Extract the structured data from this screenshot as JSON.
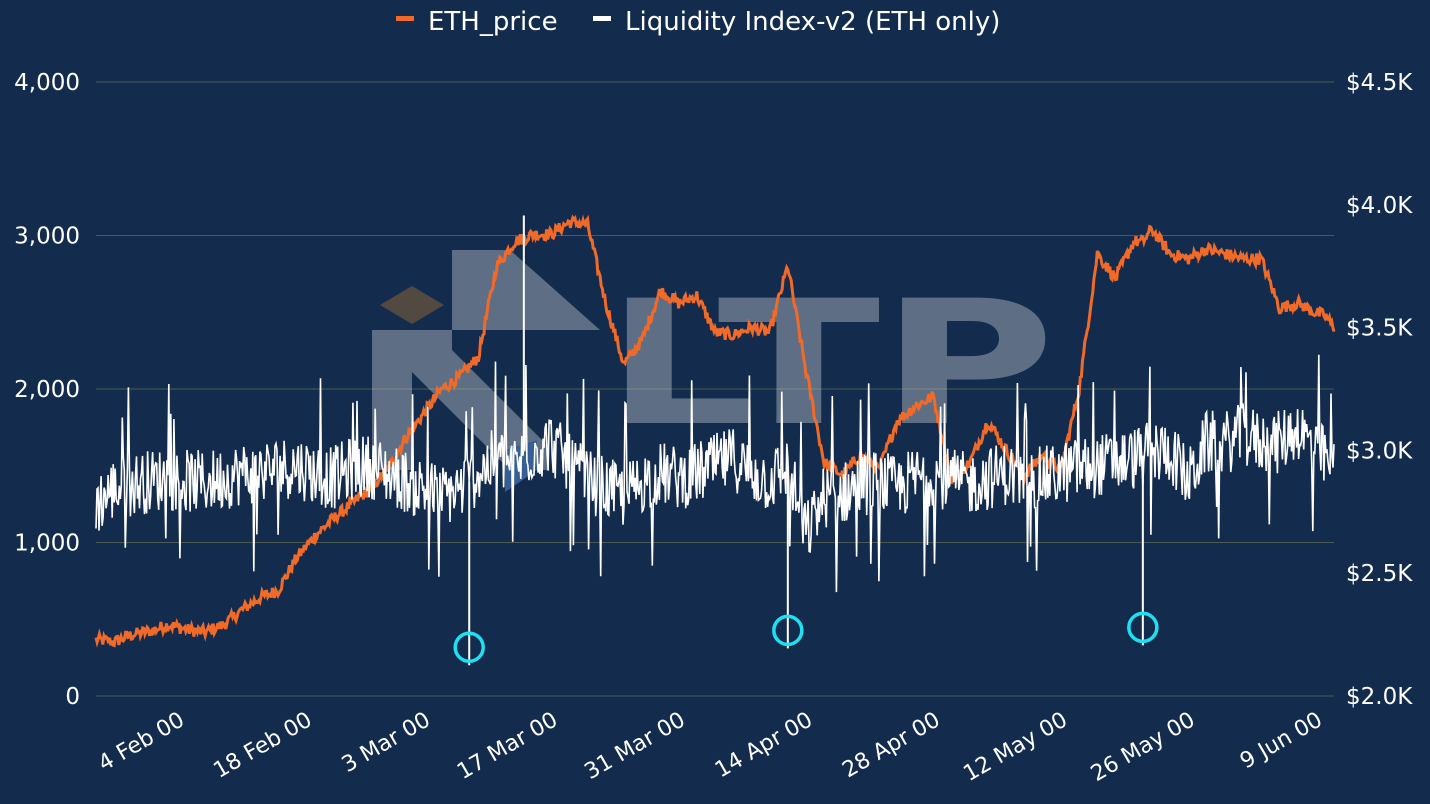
{
  "chart_data": {
    "type": "line",
    "background": "#132c4e",
    "legend": {
      "position": "top-center",
      "items": [
        {
          "label": "ETH_price",
          "color": "#f26a28"
        },
        {
          "label": "Liquidity Index-v2 (ETH only)",
          "color": "#ffffff"
        }
      ]
    },
    "y_left": {
      "ticks": [
        0,
        1000,
        2000,
        3000,
        4000
      ],
      "tick_labels": [
        "0",
        "1,000",
        "2,000",
        "3,000",
        "4,000"
      ],
      "range": [
        0,
        4000
      ]
    },
    "y_right": {
      "ticks": [
        2000,
        2500,
        3000,
        3500,
        4000,
        4500
      ],
      "tick_labels": [
        "$2.0K",
        "$2.5K",
        "$3.0K",
        "$3.5K",
        "$4.0K",
        "$4.5K"
      ],
      "range": [
        2000,
        4500
      ]
    },
    "x_axis": {
      "range": [
        "2021-01-26",
        "2021-06-11"
      ],
      "ticks": [
        "2021-02-04",
        "2021-02-18",
        "2021-03-03",
        "2021-03-17",
        "2021-03-31",
        "2021-04-14",
        "2021-04-28",
        "2021-05-12",
        "2021-05-26",
        "2021-06-09"
      ],
      "tick_labels": [
        "4 Feb 00",
        "18 Feb 00",
        "3 Mar 00",
        "17 Mar 00",
        "31 Mar 00",
        "14 Apr 00",
        "28 Apr 00",
        "12 May 00",
        "26 May 00",
        "9 Jun 00"
      ]
    },
    "grid": "horizontal",
    "series": [
      {
        "name": "ETH_price",
        "axis": "right",
        "color": "#f26a28",
        "x": [
          "2021-01-26",
          "2021-01-28",
          "2021-01-30",
          "2021-02-01",
          "2021-02-03",
          "2021-02-05",
          "2021-02-07",
          "2021-02-09",
          "2021-02-11",
          "2021-02-13",
          "2021-02-15",
          "2021-02-17",
          "2021-02-19",
          "2021-02-21",
          "2021-02-23",
          "2021-02-25",
          "2021-02-27",
          "2021-03-01",
          "2021-03-03",
          "2021-03-05",
          "2021-03-07",
          "2021-03-09",
          "2021-03-11",
          "2021-03-13",
          "2021-03-15",
          "2021-03-17",
          "2021-03-19",
          "2021-03-21",
          "2021-03-23",
          "2021-03-25",
          "2021-03-27",
          "2021-03-29",
          "2021-03-31",
          "2021-04-02",
          "2021-04-04",
          "2021-04-06",
          "2021-04-08",
          "2021-04-10",
          "2021-04-12",
          "2021-04-14",
          "2021-04-16",
          "2021-04-18",
          "2021-04-20",
          "2021-04-22",
          "2021-04-24",
          "2021-04-26",
          "2021-04-28",
          "2021-04-30",
          "2021-05-02",
          "2021-05-04",
          "2021-05-06",
          "2021-05-08",
          "2021-05-10",
          "2021-05-12",
          "2021-05-14",
          "2021-05-16",
          "2021-05-18",
          "2021-05-20",
          "2021-05-21",
          "2021-05-22",
          "2021-05-24",
          "2021-05-26",
          "2021-05-28",
          "2021-05-30",
          "2021-06-01",
          "2021-06-03",
          "2021-06-05",
          "2021-06-07",
          "2021-06-09",
          "2021-06-10",
          "2021-06-11"
        ],
        "values": [
          2230,
          2220,
          2250,
          2265,
          2290,
          2270,
          2260,
          2290,
          2350,
          2400,
          2430,
          2560,
          2650,
          2720,
          2780,
          2840,
          2920,
          3050,
          3150,
          3250,
          3300,
          3380,
          3750,
          3850,
          3880,
          3880,
          3930,
          3920,
          3600,
          3350,
          3450,
          3650,
          3600,
          3630,
          3480,
          3470,
          3500,
          3480,
          3750,
          3320,
          2950,
          2900,
          2980,
          2920,
          3120,
          3180,
          3220,
          2880,
          2950,
          3120,
          3000,
          2900,
          2980,
          2920,
          3250,
          3800,
          3700,
          3850,
          3850,
          3900,
          3800,
          3780,
          3820,
          3800,
          3780,
          3780,
          3580,
          3600,
          3560,
          3550,
          3500
        ]
      },
      {
        "name": "Liquidity Index-v2 (ETH only)",
        "axis": "left",
        "color": "#ffffff",
        "x": [
          "2021-01-26",
          "2021-01-28",
          "2021-01-30",
          "2021-02-01",
          "2021-02-03",
          "2021-02-05",
          "2021-02-07",
          "2021-02-09",
          "2021-02-11",
          "2021-02-13",
          "2021-02-15",
          "2021-02-17",
          "2021-02-19",
          "2021-02-21",
          "2021-02-23",
          "2021-02-25",
          "2021-02-27",
          "2021-03-01",
          "2021-03-03",
          "2021-03-05",
          "2021-03-07",
          "2021-03-09",
          "2021-03-11",
          "2021-03-13",
          "2021-03-15",
          "2021-03-17",
          "2021-03-19",
          "2021-03-21",
          "2021-03-23",
          "2021-03-25",
          "2021-03-27",
          "2021-03-29",
          "2021-03-31",
          "2021-04-02",
          "2021-04-04",
          "2021-04-06",
          "2021-04-08",
          "2021-04-10",
          "2021-04-12",
          "2021-04-14",
          "2021-04-16",
          "2021-04-18",
          "2021-04-20",
          "2021-04-22",
          "2021-04-24",
          "2021-04-26",
          "2021-04-28",
          "2021-04-30",
          "2021-05-02",
          "2021-05-04",
          "2021-05-06",
          "2021-05-08",
          "2021-05-10",
          "2021-05-12",
          "2021-05-14",
          "2021-05-16",
          "2021-05-18",
          "2021-05-20",
          "2021-05-22",
          "2021-05-24",
          "2021-05-26",
          "2021-05-28",
          "2021-05-30",
          "2021-06-01",
          "2021-06-03",
          "2021-06-05",
          "2021-06-07",
          "2021-06-09",
          "2021-06-11"
        ],
        "values": [
          1250,
          1350,
          1380,
          1400,
          1420,
          1400,
          1390,
          1420,
          1450,
          1460,
          1480,
          1500,
          1450,
          1420,
          1480,
          1500,
          1450,
          1400,
          1350,
          1300,
          1350,
          1450,
          1550,
          1500,
          1600,
          1650,
          1500,
          1400,
          1350,
          1300,
          1400,
          1450,
          1420,
          1450,
          1500,
          1550,
          1450,
          1400,
          1500,
          1050,
          1300,
          1320,
          1380,
          1400,
          1350,
          1420,
          1450,
          1400,
          1380,
          1420,
          1450,
          1400,
          1420,
          1450,
          1480,
          1500,
          1520,
          1550,
          1580,
          1600,
          1400,
          1650,
          1650,
          1700,
          1650,
          1650,
          1750,
          1600,
          1500
        ]
      }
    ],
    "spikes": [
      {
        "x": "2021-03-08",
        "value": 200
      },
      {
        "x": "2021-04-12",
        "value": 310
      },
      {
        "x": "2021-05-21",
        "value": 330
      }
    ],
    "spike_markers_color": "#1fe0f2",
    "watermark": {
      "text": "LTP",
      "diamond_color": "#a9712e",
      "accent_color": "#6aa6f8"
    }
  }
}
